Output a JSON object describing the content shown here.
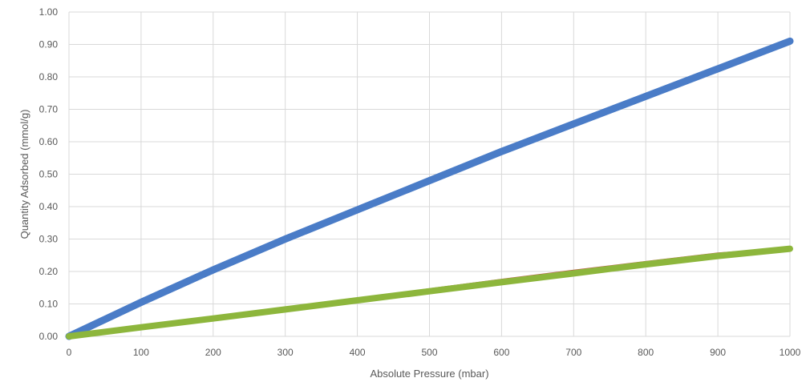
{
  "chart_data": {
    "type": "line",
    "title": "",
    "xlabel": "Absolute Pressure (mbar)",
    "ylabel": "Quantity Adsorbed (mmol/g)",
    "xlim": [
      0,
      1000
    ],
    "ylim": [
      0,
      1.0
    ],
    "x_ticks": [
      "0",
      "100",
      "200",
      "300",
      "400",
      "500",
      "600",
      "700",
      "800",
      "900",
      "1000"
    ],
    "y_ticks": [
      "0.00",
      "0.10",
      "0.20",
      "0.30",
      "0.40",
      "0.50",
      "0.60",
      "0.70",
      "0.80",
      "0.90",
      "1.00"
    ],
    "grid": true,
    "legend": "none",
    "series": [
      {
        "color": "#4a7cc7",
        "x": [
          0,
          100,
          200,
          300,
          400,
          500,
          600,
          700,
          800,
          900,
          1000
        ],
        "y": [
          0.0,
          0.105,
          0.205,
          0.3,
          0.39,
          0.48,
          0.57,
          0.655,
          0.74,
          0.825,
          0.91
        ]
      },
      {
        "color": "#c0504d",
        "x": [
          0,
          100,
          200,
          300,
          400,
          500,
          600,
          700,
          800,
          900,
          1000
        ],
        "y": [
          0.0,
          0.03,
          0.058,
          0.087,
          0.116,
          0.146,
          0.175,
          0.203,
          0.23,
          0.256,
          0.272
        ]
      },
      {
        "color": "#8db63c",
        "x": [
          0,
          100,
          200,
          300,
          400,
          500,
          600,
          700,
          800,
          900,
          1000
        ],
        "y": [
          0.0,
          0.028,
          0.055,
          0.083,
          0.111,
          0.139,
          0.167,
          0.194,
          0.222,
          0.248,
          0.27
        ]
      }
    ]
  }
}
